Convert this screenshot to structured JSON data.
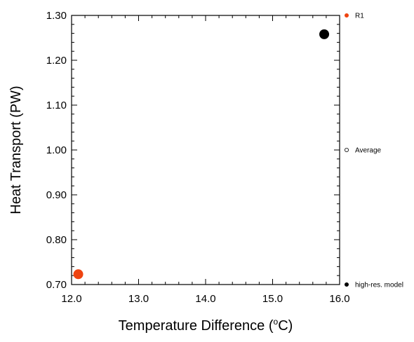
{
  "chart_data": {
    "type": "scatter",
    "xlabel": "Temperature Difference (",
    "xlabel_unit": "o",
    "xlabel_suffix": "C)",
    "ylabel": "Heat Transport (PW)",
    "xlim": [
      12.0,
      16.0
    ],
    "ylim": [
      0.7,
      1.3
    ],
    "xticks": [
      12.0,
      13.0,
      14.0,
      15.0,
      16.0
    ],
    "yticks": [
      0.7,
      0.8,
      0.9,
      1.0,
      1.1,
      1.2,
      1.3
    ],
    "xtick_labels": [
      "12.0",
      "13.0",
      "14.0",
      "15.0",
      "16.0"
    ],
    "ytick_labels": [
      "0.70",
      "0.80",
      "0.90",
      "1.00",
      "1.10",
      "1.20",
      "1.30"
    ],
    "grid": false,
    "legend_position": "right",
    "series": [
      {
        "name": "R1",
        "color": "#ee4411",
        "marker": "filled-circle",
        "points": [
          {
            "x": 12.1,
            "y": 0.723
          }
        ]
      },
      {
        "name": "Average",
        "color": "#000000",
        "marker": "open-circle",
        "points": []
      },
      {
        "name": "high-res. model",
        "color": "#000000",
        "marker": "filled-circle",
        "points": [
          {
            "x": 15.77,
            "y": 1.258
          }
        ]
      }
    ]
  }
}
